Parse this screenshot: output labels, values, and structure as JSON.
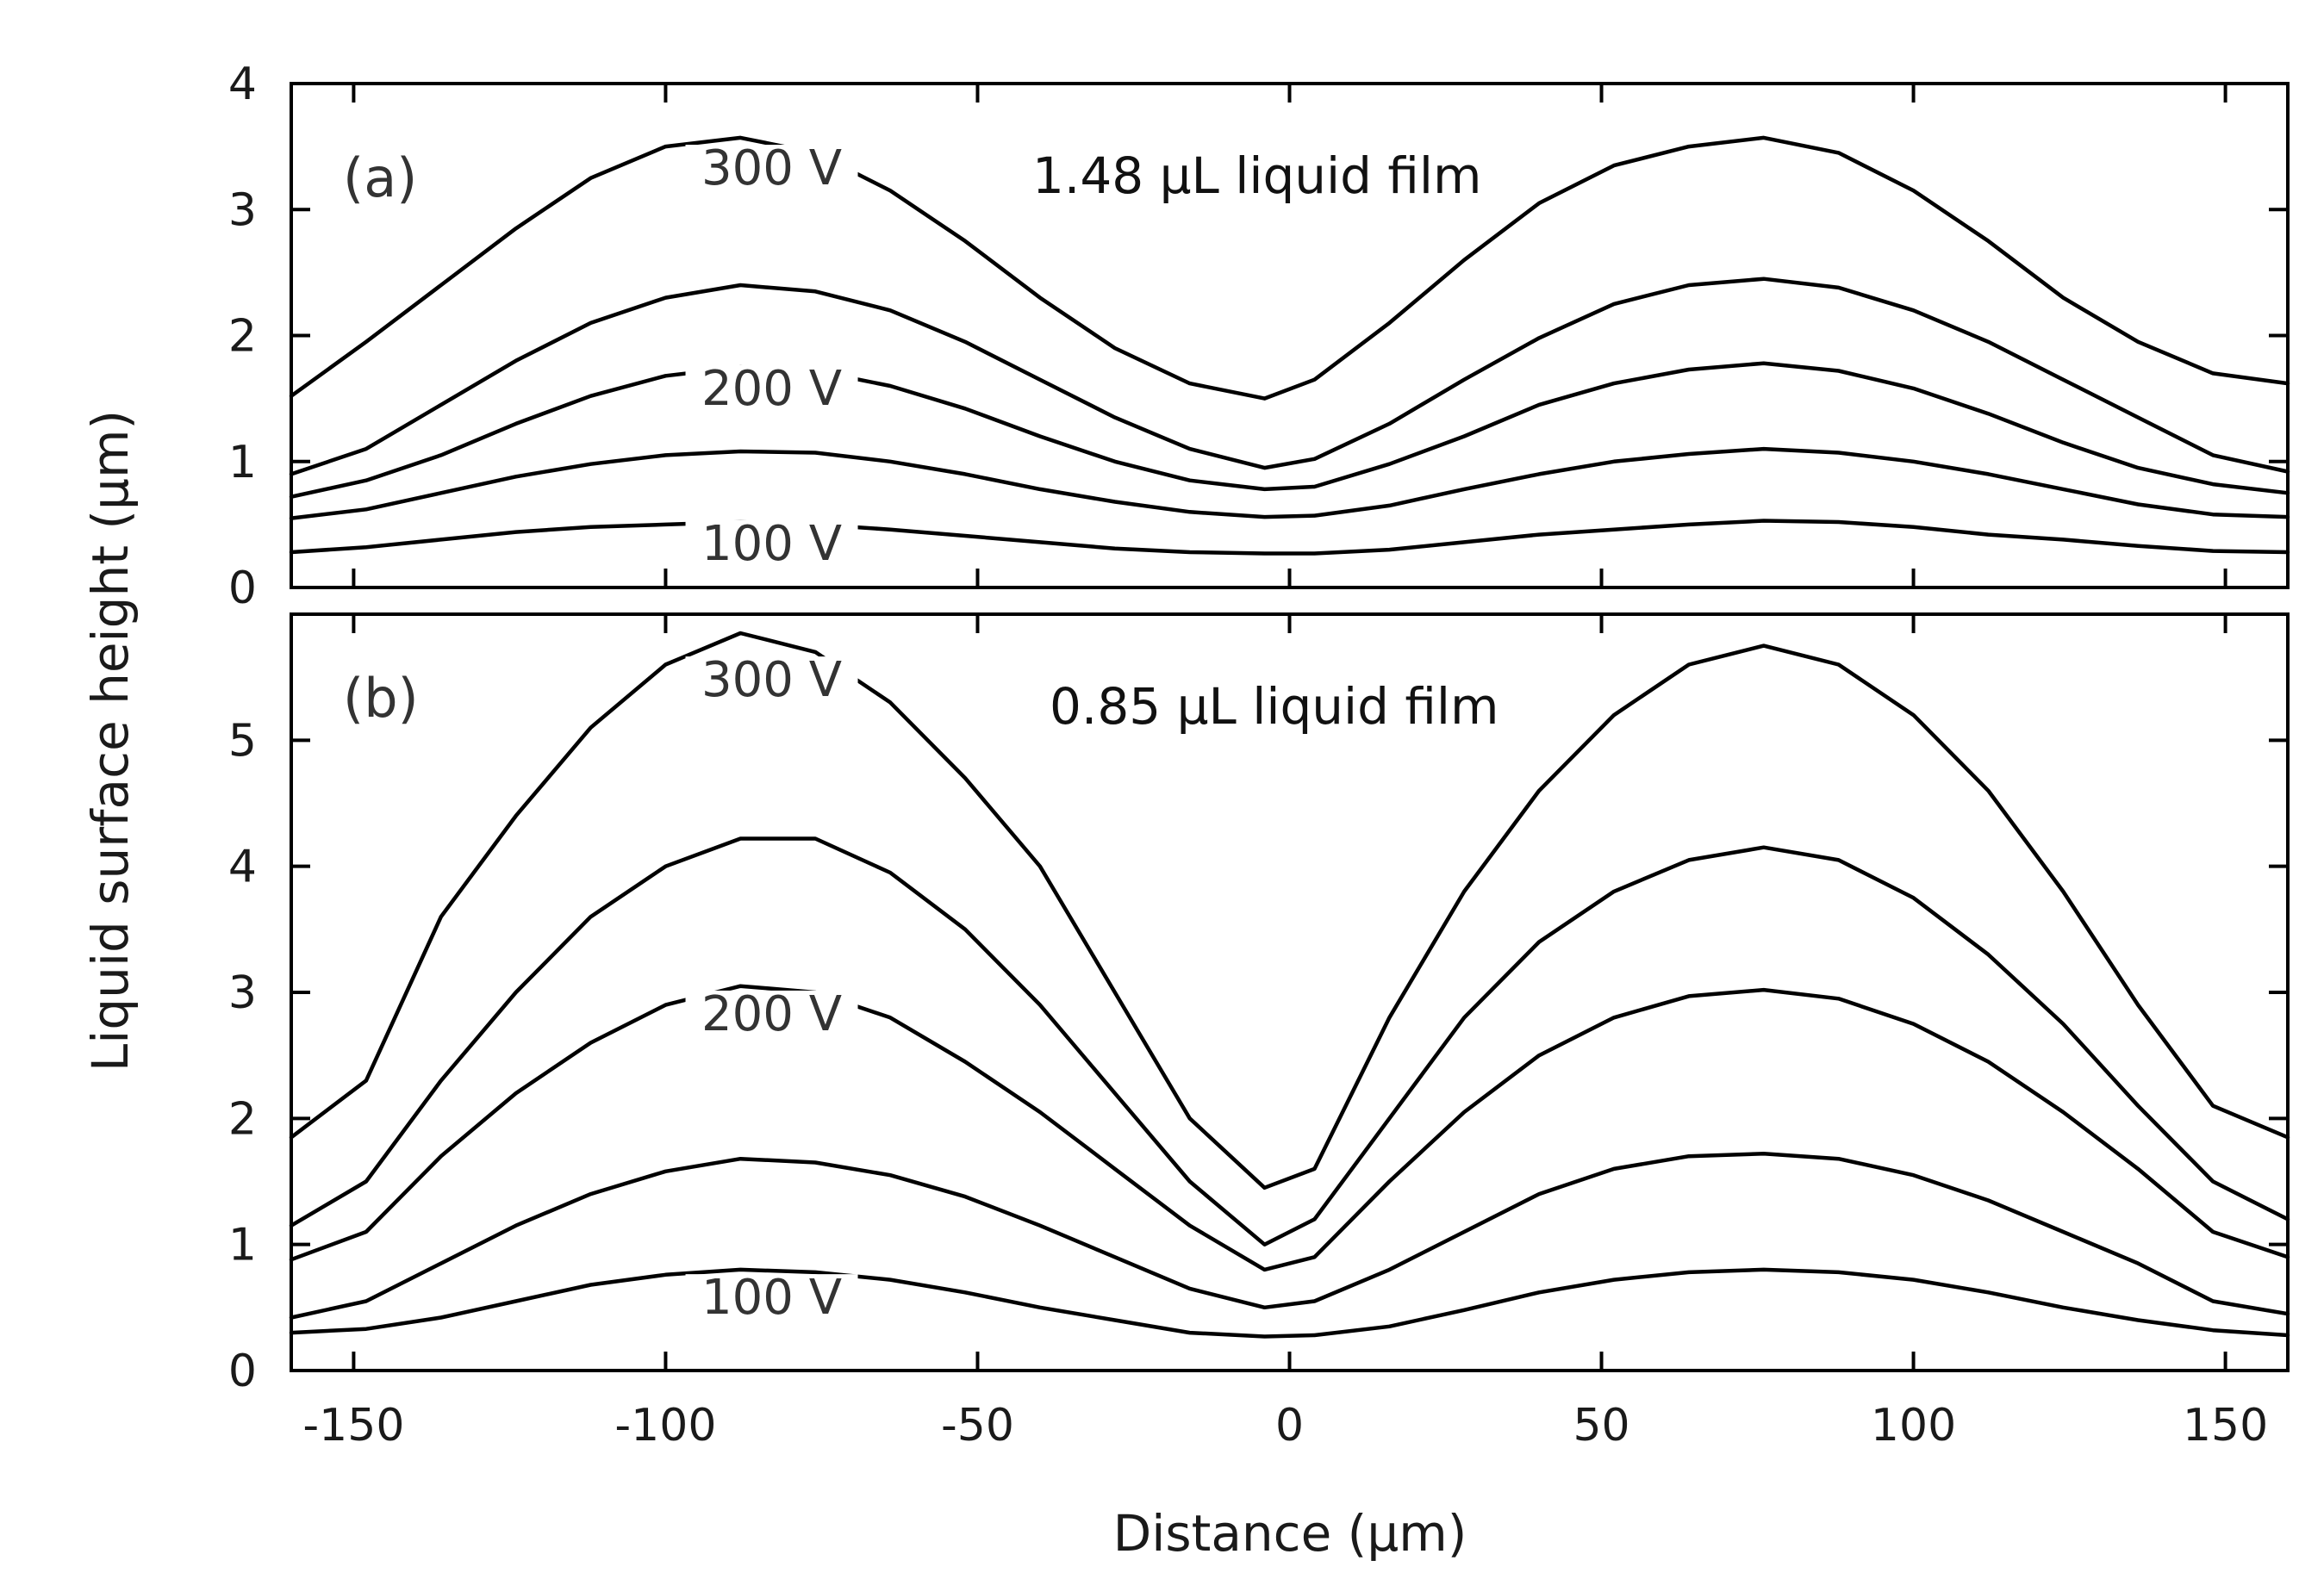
{
  "chart_data": {
    "type": "line",
    "xlabel": "Distance (μm)",
    "ylabel": "Liquid surface height (μm)",
    "xlim": [
      -160,
      160
    ],
    "xticks": [
      "-150",
      "-100",
      "-50",
      "0",
      "50",
      "100",
      "150"
    ],
    "panels": [
      {
        "tag": "(a)",
        "annotation": "1.48 μL liquid film",
        "ylim": [
          0,
          4
        ],
        "yticks": [
          "0",
          "1",
          "2",
          "3",
          "4"
        ],
        "voltage_labels": [
          {
            "text": "300 V",
            "x": -83,
            "y": 3.2
          },
          {
            "text": "200 V",
            "x": -83,
            "y": 1.45
          },
          {
            "text": "100 V",
            "x": -83,
            "y": 0.22
          }
        ],
        "x": [
          -160,
          -148,
          -136,
          -124,
          -112,
          -100,
          -88,
          -76,
          -64,
          -52,
          -40,
          -28,
          -16,
          -4,
          4,
          16,
          28,
          40,
          52,
          64,
          76,
          88,
          100,
          112,
          124,
          136,
          148,
          160
        ],
        "series": [
          {
            "name": "300 V",
            "values": [
              1.52,
              1.95,
              2.4,
              2.85,
              3.25,
              3.5,
              3.57,
              3.45,
              3.15,
              2.75,
              2.3,
              1.9,
              1.62,
              1.5,
              1.65,
              2.1,
              2.6,
              3.05,
              3.35,
              3.5,
              3.57,
              3.45,
              3.15,
              2.75,
              2.3,
              1.95,
              1.7,
              1.62
            ]
          },
          {
            "name": "",
            "values": [
              0.9,
              1.1,
              1.45,
              1.8,
              2.1,
              2.3,
              2.4,
              2.35,
              2.2,
              1.95,
              1.65,
              1.35,
              1.1,
              0.95,
              1.02,
              1.3,
              1.65,
              1.98,
              2.25,
              2.4,
              2.45,
              2.38,
              2.2,
              1.95,
              1.65,
              1.35,
              1.05,
              0.92
            ]
          },
          {
            "name": "200 V",
            "values": [
              0.72,
              0.85,
              1.05,
              1.3,
              1.52,
              1.68,
              1.75,
              1.72,
              1.6,
              1.42,
              1.2,
              1.0,
              0.85,
              0.78,
              0.8,
              0.98,
              1.2,
              1.45,
              1.62,
              1.73,
              1.78,
              1.72,
              1.58,
              1.38,
              1.15,
              0.95,
              0.82,
              0.75
            ]
          },
          {
            "name": "",
            "values": [
              0.55,
              0.62,
              0.75,
              0.88,
              0.98,
              1.05,
              1.08,
              1.07,
              1.0,
              0.9,
              0.78,
              0.68,
              0.6,
              0.56,
              0.57,
              0.65,
              0.78,
              0.9,
              1.0,
              1.06,
              1.1,
              1.07,
              1.0,
              0.9,
              0.78,
              0.66,
              0.58,
              0.56
            ]
          },
          {
            "name": "100 V",
            "values": [
              0.28,
              0.32,
              0.38,
              0.44,
              0.48,
              0.5,
              0.52,
              0.5,
              0.46,
              0.41,
              0.36,
              0.31,
              0.28,
              0.27,
              0.27,
              0.3,
              0.36,
              0.42,
              0.46,
              0.5,
              0.53,
              0.52,
              0.48,
              0.42,
              0.38,
              0.33,
              0.29,
              0.28
            ]
          }
        ]
      },
      {
        "tag": "(b)",
        "annotation": "0.85 μL liquid film",
        "ylim": [
          0,
          6
        ],
        "yticks": [
          "0",
          "1",
          "2",
          "3",
          "4",
          "5"
        ],
        "voltage_labels": [
          {
            "text": "300 V",
            "x": -83,
            "y": 5.35
          },
          {
            "text": "200 V",
            "x": -83,
            "y": 2.7
          },
          {
            "text": "100 V",
            "x": -83,
            "y": 0.45
          }
        ],
        "x": [
          -160,
          -148,
          -136,
          -124,
          -112,
          -100,
          -88,
          -76,
          -64,
          -52,
          -40,
          -28,
          -16,
          -4,
          4,
          16,
          28,
          40,
          52,
          64,
          76,
          88,
          100,
          112,
          124,
          136,
          148,
          160
        ],
        "series": [
          {
            "name": "300 V",
            "values": [
              1.85,
              2.3,
              3.6,
              4.4,
              5.1,
              5.6,
              5.85,
              5.7,
              5.3,
              4.7,
              4.0,
              3.0,
              2.0,
              1.45,
              1.6,
              2.8,
              3.8,
              4.6,
              5.2,
              5.6,
              5.75,
              5.6,
              5.2,
              4.6,
              3.8,
              2.9,
              2.1,
              1.85
            ]
          },
          {
            "name": "",
            "values": [
              1.15,
              1.5,
              2.3,
              3.0,
              3.6,
              4.0,
              4.22,
              4.22,
              3.95,
              3.5,
              2.9,
              2.2,
              1.5,
              1.0,
              1.2,
              2.0,
              2.8,
              3.4,
              3.8,
              4.05,
              4.15,
              4.05,
              3.75,
              3.3,
              2.75,
              2.1,
              1.5,
              1.2
            ]
          },
          {
            "name": "200 V",
            "values": [
              0.88,
              1.1,
              1.7,
              2.2,
              2.6,
              2.9,
              3.05,
              3.0,
              2.8,
              2.45,
              2.05,
              1.6,
              1.15,
              0.8,
              0.9,
              1.5,
              2.05,
              2.5,
              2.8,
              2.97,
              3.02,
              2.95,
              2.75,
              2.45,
              2.05,
              1.6,
              1.1,
              0.9
            ]
          },
          {
            "name": "",
            "values": [
              0.42,
              0.55,
              0.85,
              1.15,
              1.4,
              1.58,
              1.68,
              1.65,
              1.55,
              1.38,
              1.15,
              0.9,
              0.65,
              0.5,
              0.55,
              0.8,
              1.1,
              1.4,
              1.6,
              1.7,
              1.72,
              1.68,
              1.55,
              1.35,
              1.1,
              0.85,
              0.55,
              0.45
            ]
          },
          {
            "name": "100 V",
            "values": [
              0.3,
              0.33,
              0.42,
              0.55,
              0.68,
              0.76,
              0.8,
              0.78,
              0.72,
              0.62,
              0.5,
              0.4,
              0.3,
              0.27,
              0.28,
              0.35,
              0.48,
              0.62,
              0.72,
              0.78,
              0.8,
              0.78,
              0.72,
              0.62,
              0.5,
              0.4,
              0.32,
              0.28
            ]
          }
        ]
      }
    ]
  }
}
